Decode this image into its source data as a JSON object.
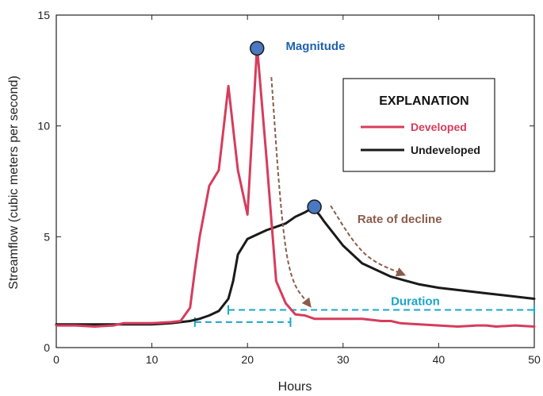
{
  "chart_data": {
    "type": "line",
    "xlabel": "Hours",
    "ylabel": "Streamflow (cubic meters per second)",
    "xlim": [
      0,
      50
    ],
    "ylim": [
      0,
      15
    ],
    "xticks": [
      0,
      10,
      20,
      30,
      40,
      50
    ],
    "yticks": [
      0,
      5,
      10,
      15
    ],
    "xtick_labels": [
      "0",
      "10",
      "20",
      "30",
      "40",
      "50"
    ],
    "ytick_labels": [
      "0",
      "5",
      "10",
      "15"
    ],
    "grid": false,
    "legend": {
      "title": "EXPLANATION",
      "placement": "top-right"
    },
    "series": [
      {
        "name": "Developed",
        "color": "#d63c5c",
        "x": [
          0,
          2,
          4,
          6,
          7,
          8,
          10,
          12,
          13,
          14,
          14.5,
          15,
          16,
          17,
          18,
          19,
          20,
          21,
          22,
          23,
          24,
          25,
          26,
          27,
          28,
          30,
          32,
          34,
          35,
          36,
          38,
          40,
          42,
          44,
          45,
          46,
          48,
          50
        ],
        "y": [
          1.0,
          1.0,
          0.95,
          1.0,
          1.1,
          1.1,
          1.1,
          1.15,
          1.2,
          1.8,
          3.5,
          5.0,
          7.3,
          8.0,
          11.8,
          8.0,
          6.0,
          13.6,
          8.5,
          3.0,
          2.0,
          1.5,
          1.45,
          1.3,
          1.3,
          1.3,
          1.3,
          1.2,
          1.2,
          1.1,
          1.05,
          1.0,
          0.95,
          1.0,
          1.0,
          0.95,
          1.0,
          0.95
        ]
      },
      {
        "name": "Undeveloped",
        "color": "#1a1a1a",
        "x": [
          0,
          5,
          10,
          12,
          13,
          14,
          15,
          16,
          17,
          18,
          18.5,
          19,
          20,
          21,
          22,
          23,
          24,
          25,
          26,
          26.8,
          27.5,
          28,
          30,
          32,
          35,
          38,
          40,
          45,
          50
        ],
        "y": [
          1.05,
          1.05,
          1.05,
          1.1,
          1.15,
          1.2,
          1.3,
          1.45,
          1.65,
          2.2,
          3.0,
          4.2,
          4.9,
          5.1,
          5.3,
          5.45,
          5.6,
          5.9,
          6.1,
          6.3,
          6.0,
          5.7,
          4.6,
          3.8,
          3.2,
          2.85,
          2.7,
          2.45,
          2.2
        ]
      }
    ],
    "annotations": [
      {
        "text": "Magnitude",
        "color": "#1f62ad",
        "x": 24,
        "y": 13.6
      },
      {
        "text": "Rate of decline",
        "color": "#8b5c4a",
        "x": 31.5,
        "y": 5.8
      },
      {
        "text": "Duration",
        "color": "#1aa6c8",
        "x": 35,
        "y": 2.1
      }
    ],
    "peak_markers": [
      {
        "x": 21,
        "y": 13.5,
        "color": "#4a78c2"
      },
      {
        "x": 27,
        "y": 6.35,
        "color": "#4a78c2"
      }
    ],
    "duration_bars": [
      {
        "x0": 18,
        "x1": 50,
        "y": 1.7
      },
      {
        "x0": 14.5,
        "x1": 24.5,
        "y": 1.15
      }
    ],
    "decline_arrows": [
      {
        "points": [
          [
            22.5,
            12.2
          ],
          [
            23.5,
            6.0
          ],
          [
            24.5,
            3.0
          ],
          [
            26.5,
            1.9
          ]
        ]
      },
      {
        "points": [
          [
            28.7,
            6.4
          ],
          [
            31,
            4.8
          ],
          [
            33,
            3.9
          ],
          [
            36.3,
            3.3
          ]
        ]
      }
    ]
  }
}
